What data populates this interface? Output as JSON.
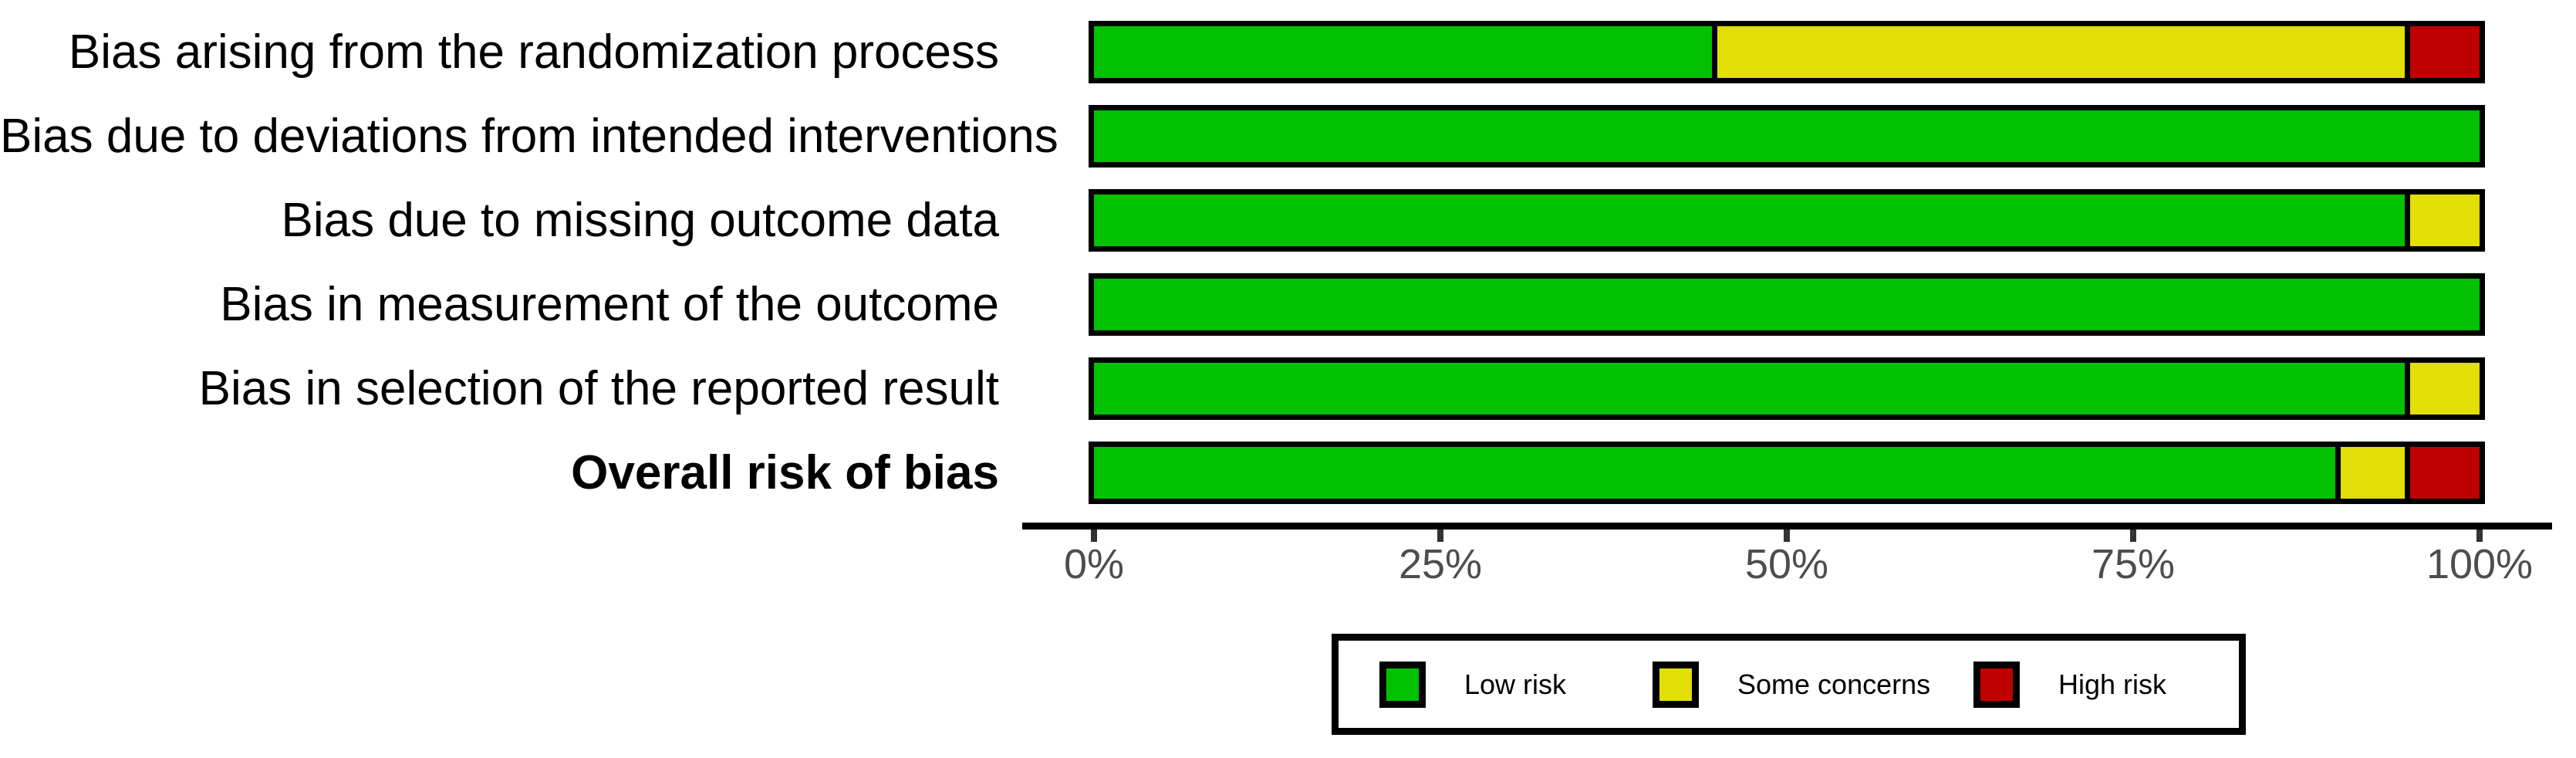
{
  "chart_data": {
    "type": "bar",
    "orientation": "horizontal",
    "stacked": true,
    "unit": "percent of studies",
    "title": "",
    "xlabel": "",
    "ylabel": "",
    "grid": false,
    "categories": [
      "Bias arising from the randomization process",
      "Bias due to deviations from intended interventions",
      "Bias due to missing outcome data",
      "Bias in measurement of the outcome",
      "Bias in selection of the reported result",
      "Overall risk of bias"
    ],
    "bold_categories": [
      "Overall risk of bias"
    ],
    "series": [
      {
        "name": "Low risk",
        "color": "#02C100",
        "values": [
          45,
          100,
          95,
          100,
          95,
          90
        ]
      },
      {
        "name": "Some concerns",
        "color": "#E2DF07",
        "values": [
          50,
          0,
          5,
          0,
          5,
          5
        ]
      },
      {
        "name": "High risk",
        "color": "#BF0000",
        "values": [
          5,
          0,
          0,
          0,
          0,
          5
        ]
      }
    ],
    "x_axis": {
      "range": [
        0,
        100
      ],
      "tick_positions": [
        0,
        25,
        50,
        75,
        100
      ],
      "tick_labels": [
        "0%",
        "25%",
        "50%",
        "75%",
        "100%"
      ]
    },
    "legend": {
      "position": "bottom",
      "entries": [
        "Low risk",
        "Some concerns",
        "High risk"
      ]
    },
    "colors": {
      "low_risk": "#02C100",
      "some_concerns": "#E2DF07",
      "high_risk": "#BF0000",
      "axis_text": "#4d4d4d",
      "axis_line": "#000000",
      "bar_border": "#000000"
    }
  }
}
